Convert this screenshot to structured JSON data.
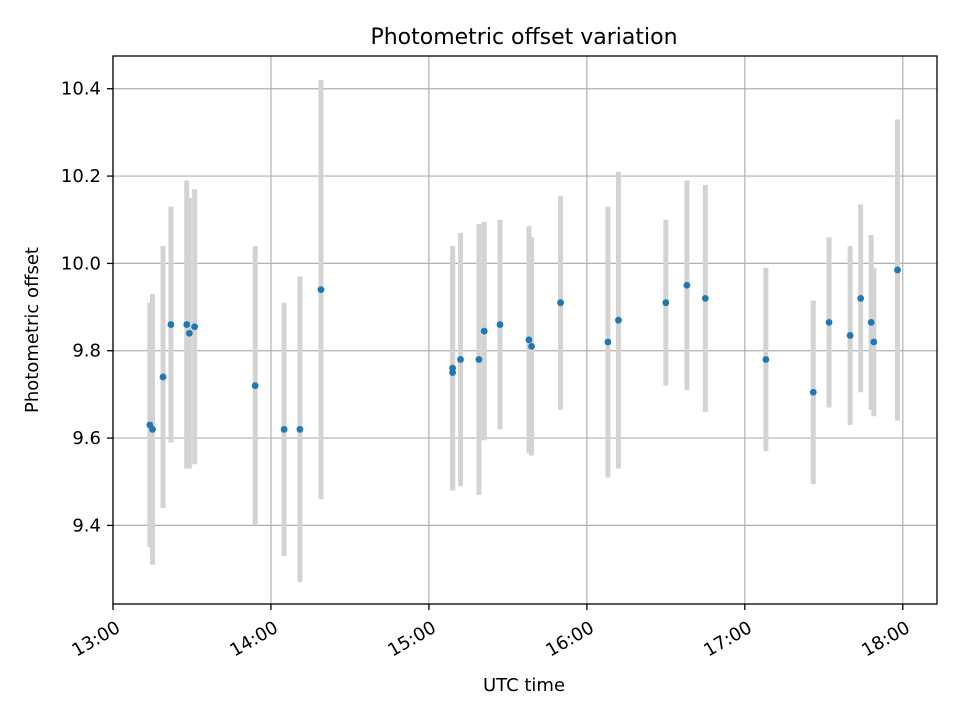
{
  "chart_data": {
    "type": "scatter",
    "title": "Photometric offset variation",
    "xlabel": "UTC time",
    "ylabel": "Photometric offset",
    "xlim": [
      "13:00",
      "18:13"
    ],
    "ylim": [
      9.22,
      10.475
    ],
    "grid": true,
    "colors": {
      "point": "#1f77b4",
      "errorbar": "#d3d3d3"
    },
    "x_ticks": [
      "13:00",
      "14:00",
      "15:00",
      "16:00",
      "17:00",
      "18:00"
    ],
    "y_ticks": [
      "9.4",
      "9.6",
      "9.8",
      "10.0",
      "10.2",
      "10.4"
    ],
    "points": [
      {
        "time": "13:14",
        "y": 9.63,
        "err": 0.28
      },
      {
        "time": "13:15",
        "y": 9.62,
        "err": 0.31
      },
      {
        "time": "13:19",
        "y": 9.74,
        "err": 0.3
      },
      {
        "time": "13:22",
        "y": 9.86,
        "err": 0.27
      },
      {
        "time": "13:28",
        "y": 9.86,
        "err": 0.33
      },
      {
        "time": "13:29",
        "y": 9.84,
        "err": 0.31
      },
      {
        "time": "13:31",
        "y": 9.855,
        "err": 0.315
      },
      {
        "time": "13:54",
        "y": 9.72,
        "err": 0.32
      },
      {
        "time": "14:05",
        "y": 9.62,
        "err": 0.29
      },
      {
        "time": "14:11",
        "y": 9.62,
        "err": 0.35
      },
      {
        "time": "14:19",
        "y": 9.94,
        "err": 0.48
      },
      {
        "time": "15:09",
        "y": 9.75,
        "err": 0.27
      },
      {
        "time": "15:09",
        "y": 9.76,
        "err": 0.28
      },
      {
        "time": "15:12",
        "y": 9.78,
        "err": 0.29
      },
      {
        "time": "15:19",
        "y": 9.78,
        "err": 0.31
      },
      {
        "time": "15:21",
        "y": 9.845,
        "err": 0.25
      },
      {
        "time": "15:27",
        "y": 9.86,
        "err": 0.24
      },
      {
        "time": "15:38",
        "y": 9.825,
        "err": 0.26
      },
      {
        "time": "15:39",
        "y": 9.81,
        "err": 0.25
      },
      {
        "time": "15:50",
        "y": 9.91,
        "err": 0.245
      },
      {
        "time": "16:08",
        "y": 9.82,
        "err": 0.31
      },
      {
        "time": "16:12",
        "y": 9.87,
        "err": 0.34
      },
      {
        "time": "16:30",
        "y": 9.91,
        "err": 0.19
      },
      {
        "time": "16:38",
        "y": 9.95,
        "err": 0.24
      },
      {
        "time": "16:45",
        "y": 9.92,
        "err": 0.26
      },
      {
        "time": "17:08",
        "y": 9.78,
        "err": 0.21
      },
      {
        "time": "17:26",
        "y": 9.705,
        "err": 0.21
      },
      {
        "time": "17:32",
        "y": 9.865,
        "err": 0.195
      },
      {
        "time": "17:40",
        "y": 9.835,
        "err": 0.205
      },
      {
        "time": "17:44",
        "y": 9.92,
        "err": 0.215
      },
      {
        "time": "17:48",
        "y": 9.865,
        "err": 0.2
      },
      {
        "time": "17:49",
        "y": 9.82,
        "err": 0.17
      },
      {
        "time": "17:58",
        "y": 9.985,
        "err": 0.345
      }
    ]
  }
}
